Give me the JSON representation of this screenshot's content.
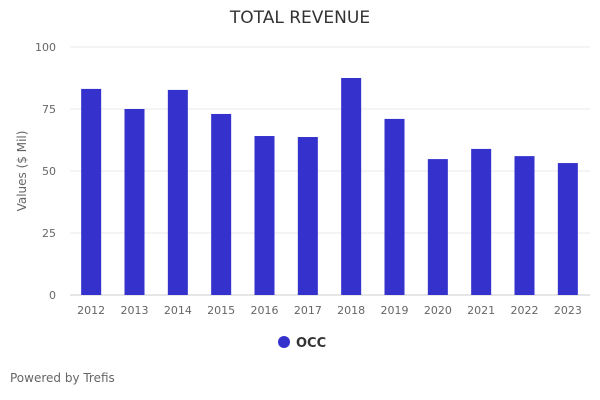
{
  "chart_data": {
    "type": "bar",
    "title": "TOTAL REVENUE",
    "xlabel": "",
    "ylabel": "Values ($ Mil)",
    "ylim": [
      0,
      100
    ],
    "yticks": [
      0,
      25,
      50,
      75,
      100
    ],
    "grid": true,
    "legend_position": "bottom",
    "categories": [
      "2012",
      "2013",
      "2014",
      "2015",
      "2016",
      "2017",
      "2018",
      "2019",
      "2020",
      "2021",
      "2022",
      "2023"
    ],
    "series": [
      {
        "name": "OCC",
        "color": "#3431cc",
        "values": [
          83.1,
          75.0,
          82.7,
          73.0,
          64.1,
          63.7,
          87.5,
          71.0,
          54.8,
          58.9,
          56.0,
          53.2
        ]
      }
    ]
  },
  "footer": "Powered by Trefis"
}
